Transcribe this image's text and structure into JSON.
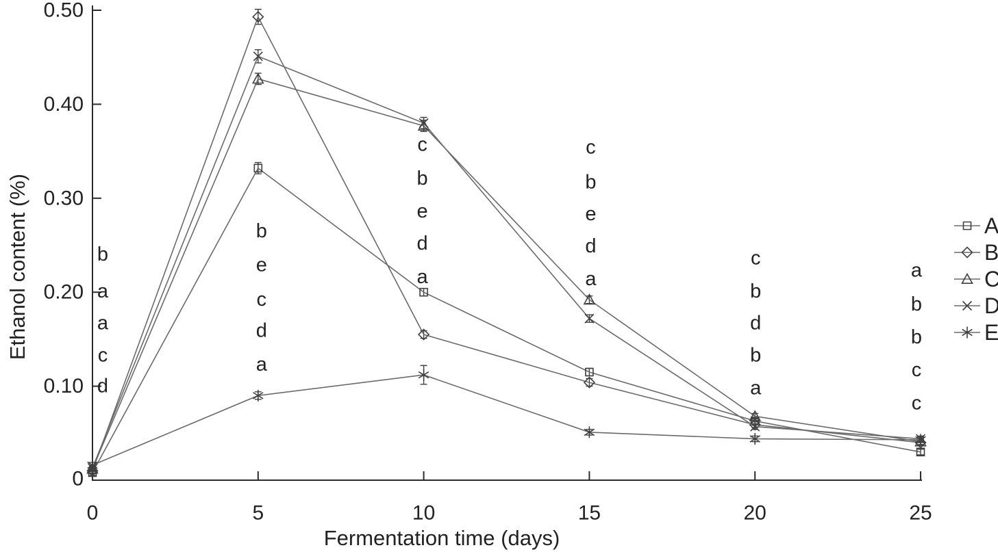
{
  "figure": {
    "background": "#ffffff",
    "text_color": "#222222",
    "line_color": "#6a6a6a",
    "marker_color": "#3f3f3f"
  },
  "chart_data": {
    "type": "line",
    "title": "",
    "xlabel": "Fermentation time (days)",
    "ylabel": "Ethanol content (%)",
    "x": [
      0,
      5,
      10,
      15,
      20,
      25
    ],
    "xlim": [
      0,
      25
    ],
    "ylim": [
      0,
      0.5
    ],
    "x_tick_labels": [
      "0",
      "5",
      "10",
      "15",
      "20",
      "25"
    ],
    "x_tick_values": [
      0,
      5,
      10,
      15,
      20,
      25
    ],
    "y_tick_labels": [
      "0",
      "0.10",
      "0.20",
      "0.30",
      "0.40",
      "0.50"
    ],
    "y_tick_values": [
      0,
      0.1,
      0.2,
      0.3,
      0.4,
      0.5
    ],
    "grid": false,
    "legend_position": "right-outside",
    "series": [
      {
        "name": "A",
        "marker": "square",
        "values": [
          0.008,
          0.332,
          0.2,
          0.115,
          0.063,
          0.03
        ],
        "errors": [
          0.003,
          0.006,
          0.004,
          0.004,
          0.003,
          0.003
        ]
      },
      {
        "name": "B",
        "marker": "diamond",
        "values": [
          0.01,
          0.493,
          0.155,
          0.104,
          0.059,
          0.04
        ],
        "errors": [
          0.003,
          0.008,
          0.004,
          0.004,
          0.003,
          0.003
        ]
      },
      {
        "name": "C",
        "marker": "triangle",
        "values": [
          0.012,
          0.427,
          0.377,
          0.192,
          0.068,
          0.041
        ],
        "errors": [
          0.003,
          0.006,
          0.006,
          0.004,
          0.003,
          0.003
        ]
      },
      {
        "name": "D",
        "marker": "x",
        "values": [
          0.013,
          0.451,
          0.38,
          0.172,
          0.057,
          0.044
        ],
        "errors": [
          0.003,
          0.007,
          0.006,
          0.004,
          0.003,
          0.003
        ]
      },
      {
        "name": "E",
        "marker": "asterisk",
        "values": [
          0.016,
          0.09,
          0.112,
          0.051,
          0.044,
          0.043
        ],
        "errors": [
          0.003,
          0.004,
          0.01,
          0.003,
          0.003,
          0.003
        ]
      }
    ],
    "annotations": [
      {
        "x": 0,
        "dx": 15,
        "letters": [
          {
            "t": "b",
            "y": 0.24
          },
          {
            "t": "a",
            "y": 0.201
          },
          {
            "t": "a",
            "y": 0.167
          },
          {
            "t": "c",
            "y": 0.133
          },
          {
            "t": "d",
            "y": 0.1
          }
        ]
      },
      {
        "x": 5,
        "dx": 5,
        "letters": [
          {
            "t": "b",
            "y": 0.265
          },
          {
            "t": "e",
            "y": 0.229
          },
          {
            "t": "c",
            "y": 0.192
          },
          {
            "t": "d",
            "y": 0.159
          },
          {
            "t": "a",
            "y": 0.123
          }
        ]
      },
      {
        "x": 10,
        "dx": -2,
        "letters": [
          {
            "t": "c",
            "y": 0.357
          },
          {
            "t": "b",
            "y": 0.321
          },
          {
            "t": "e",
            "y": 0.286
          },
          {
            "t": "d",
            "y": 0.252
          },
          {
            "t": "a",
            "y": 0.216
          }
        ]
      },
      {
        "x": 15,
        "dx": 2,
        "letters": [
          {
            "t": "c",
            "y": 0.354
          },
          {
            "t": "b",
            "y": 0.317
          },
          {
            "t": "e",
            "y": 0.283
          },
          {
            "t": "d",
            "y": 0.249
          },
          {
            "t": "a",
            "y": 0.214
          }
        ]
      },
      {
        "x": 20,
        "dx": 1,
        "letters": [
          {
            "t": "c",
            "y": 0.236
          },
          {
            "t": "b",
            "y": 0.201
          },
          {
            "t": "d",
            "y": 0.167
          },
          {
            "t": "b",
            "y": 0.133
          },
          {
            "t": "a",
            "y": 0.098
          }
        ]
      },
      {
        "x": 25,
        "dx": -6,
        "letters": [
          {
            "t": "a",
            "y": 0.223
          },
          {
            "t": "b",
            "y": 0.187
          },
          {
            "t": "b",
            "y": 0.152
          },
          {
            "t": "c",
            "y": 0.117
          },
          {
            "t": "c",
            "y": 0.082
          }
        ]
      }
    ]
  }
}
